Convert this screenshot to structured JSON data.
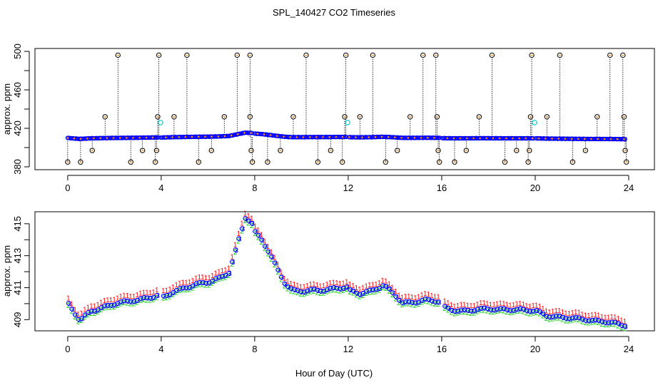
{
  "title": "SPL_140427  CO2 Timeseries",
  "colors": {
    "axis": "#000000",
    "bg": "#ffffff",
    "blue": "#0000ff",
    "red": "#ff0000",
    "green": "#00cc00",
    "cyan": "#00cccc",
    "orange": "#ff8c00",
    "spike": "#000000"
  },
  "chart_data": [
    {
      "type": "scatter",
      "panel": "top",
      "title": "",
      "xlabel": "",
      "ylabel": "approx. ppm",
      "xlim": [
        -1.4,
        25.1
      ],
      "ylim": [
        377,
        503
      ],
      "xticks": [
        0,
        4,
        8,
        12,
        16,
        20,
        24
      ],
      "yticks": [
        380,
        420,
        460,
        500
      ],
      "ytick_labels": [
        "380",
        "420",
        "460",
        "500"
      ],
      "gaps": [
        [
          3.9,
          4.0
        ],
        [
          7.9,
          8.0
        ],
        [
          11.95,
          12.0
        ],
        [
          15.92,
          16.0
        ],
        [
          19.92,
          20.0
        ]
      ],
      "baseline_points": [
        [
          0.0,
          410.0
        ],
        [
          0.5,
          409.0
        ],
        [
          1.0,
          409.6
        ],
        [
          1.5,
          409.8
        ],
        [
          2.0,
          410.0
        ],
        [
          2.5,
          410.1
        ],
        [
          3.0,
          410.2
        ],
        [
          3.5,
          410.4
        ],
        [
          3.9,
          410.6
        ],
        [
          4.0,
          410.4
        ],
        [
          4.5,
          410.8
        ],
        [
          5.0,
          411.0
        ],
        [
          5.5,
          411.2
        ],
        [
          6.0,
          411.3
        ],
        [
          6.5,
          411.6
        ],
        [
          6.9,
          412.0
        ],
        [
          7.1,
          413.0
        ],
        [
          7.3,
          414.0
        ],
        [
          7.6,
          415.5
        ],
        [
          7.9,
          415.0
        ],
        [
          8.0,
          414.5
        ],
        [
          8.3,
          414.0
        ],
        [
          8.6,
          413.2
        ],
        [
          9.0,
          412.0
        ],
        [
          9.3,
          411.2
        ],
        [
          9.6,
          410.8
        ],
        [
          10.0,
          410.8
        ],
        [
          10.5,
          410.9
        ],
        [
          11.0,
          410.9
        ],
        [
          11.5,
          411.0
        ],
        [
          11.95,
          411.0
        ],
        [
          12.0,
          410.8
        ],
        [
          12.5,
          410.6
        ],
        [
          13.0,
          410.8
        ],
        [
          13.5,
          411.2
        ],
        [
          14.0,
          410.6
        ],
        [
          14.3,
          410.1
        ],
        [
          14.8,
          410.1
        ],
        [
          15.3,
          410.2
        ],
        [
          15.9,
          410.1
        ],
        [
          16.0,
          409.8
        ],
        [
          16.5,
          409.6
        ],
        [
          17.0,
          409.6
        ],
        [
          17.5,
          409.7
        ],
        [
          18.0,
          409.7
        ],
        [
          18.5,
          409.6
        ],
        [
          19.0,
          409.6
        ],
        [
          19.5,
          409.6
        ],
        [
          19.9,
          409.6
        ],
        [
          20.0,
          409.6
        ],
        [
          20.5,
          409.3
        ],
        [
          21.0,
          409.2
        ],
        [
          21.5,
          409.1
        ],
        [
          22.0,
          409.0
        ],
        [
          22.5,
          408.9
        ],
        [
          23.0,
          408.9
        ],
        [
          23.5,
          408.8
        ],
        [
          23.8,
          408.7
        ]
      ],
      "spikes": [
        {
          "x": 0.0,
          "y": 385
        },
        {
          "x": 0.55,
          "y": 385
        },
        {
          "x": 1.05,
          "y": 397
        },
        {
          "x": 1.6,
          "y": 432
        },
        {
          "x": 2.15,
          "y": 496
        },
        {
          "x": 2.7,
          "y": 385
        },
        {
          "x": 3.2,
          "y": 397
        },
        {
          "x": 3.75,
          "y": 385
        },
        {
          "x": 3.8,
          "y": 397
        },
        {
          "x": 3.85,
          "y": 432
        },
        {
          "x": 3.9,
          "y": 496
        },
        {
          "x": 4.55,
          "y": 432
        },
        {
          "x": 5.1,
          "y": 496
        },
        {
          "x": 5.6,
          "y": 385
        },
        {
          "x": 6.15,
          "y": 397
        },
        {
          "x": 6.7,
          "y": 432
        },
        {
          "x": 7.25,
          "y": 496
        },
        {
          "x": 7.8,
          "y": 496
        },
        {
          "x": 7.8,
          "y": 432
        },
        {
          "x": 7.85,
          "y": 397
        },
        {
          "x": 7.9,
          "y": 385
        },
        {
          "x": 8.55,
          "y": 385
        },
        {
          "x": 9.1,
          "y": 397
        },
        {
          "x": 9.65,
          "y": 432
        },
        {
          "x": 10.2,
          "y": 496
        },
        {
          "x": 10.7,
          "y": 385
        },
        {
          "x": 11.25,
          "y": 397
        },
        {
          "x": 11.75,
          "y": 385
        },
        {
          "x": 11.85,
          "y": 432
        },
        {
          "x": 11.9,
          "y": 496
        },
        {
          "x": 12.5,
          "y": 432
        },
        {
          "x": 13.05,
          "y": 496
        },
        {
          "x": 13.6,
          "y": 385
        },
        {
          "x": 14.1,
          "y": 397
        },
        {
          "x": 14.65,
          "y": 432
        },
        {
          "x": 15.2,
          "y": 496
        },
        {
          "x": 15.75,
          "y": 496
        },
        {
          "x": 15.8,
          "y": 432
        },
        {
          "x": 15.85,
          "y": 397
        },
        {
          "x": 15.9,
          "y": 385
        },
        {
          "x": 16.55,
          "y": 385
        },
        {
          "x": 17.05,
          "y": 397
        },
        {
          "x": 17.6,
          "y": 432
        },
        {
          "x": 18.15,
          "y": 496
        },
        {
          "x": 18.7,
          "y": 385
        },
        {
          "x": 19.2,
          "y": 397
        },
        {
          "x": 19.7,
          "y": 385
        },
        {
          "x": 19.75,
          "y": 397
        },
        {
          "x": 19.8,
          "y": 432
        },
        {
          "x": 19.85,
          "y": 496
        },
        {
          "x": 20.5,
          "y": 432
        },
        {
          "x": 21.05,
          "y": 496
        },
        {
          "x": 21.6,
          "y": 385
        },
        {
          "x": 22.15,
          "y": 397
        },
        {
          "x": 22.65,
          "y": 432
        },
        {
          "x": 23.2,
          "y": 496
        },
        {
          "x": 23.75,
          "y": 496
        },
        {
          "x": 23.8,
          "y": 432
        },
        {
          "x": 23.85,
          "y": 397
        },
        {
          "x": 23.9,
          "y": 385
        }
      ],
      "cyan_points": [
        [
          3.97,
          426
        ],
        [
          11.97,
          426
        ],
        [
          19.97,
          426
        ]
      ]
    },
    {
      "type": "scatter",
      "panel": "bottom",
      "title": "",
      "xlabel": "Hour of Day (UTC)",
      "ylabel": "approx. ppm",
      "xlim": [
        -1.4,
        25.1
      ],
      "ylim": [
        408.3,
        415.75
      ],
      "xticks": [
        0,
        4,
        8,
        12,
        16,
        20,
        24
      ],
      "yticks": [
        409,
        411,
        413,
        415
      ],
      "ytick_labels": [
        "409",
        "411",
        "413",
        "415"
      ],
      "series": [
        {
          "name": "1",
          "symbol": "1",
          "color": "#ff0000",
          "offset": 0.35
        },
        {
          "name": "2",
          "symbol": "2",
          "color": "#00cc00",
          "offset": -0.12
        },
        {
          "name": "3",
          "symbol": "3",
          "color": "#0000ff",
          "offset": 0.0
        },
        {
          "name": "o",
          "symbol": "o",
          "color": "#0000ff",
          "offset": 0.0
        }
      ],
      "baseline_ref": "top.baseline_points"
    }
  ]
}
